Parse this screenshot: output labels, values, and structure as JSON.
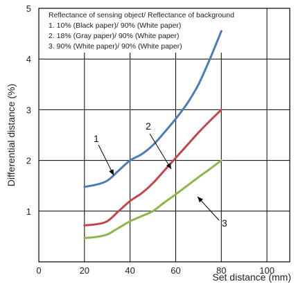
{
  "chart_data": {
    "type": "line",
    "xlabel": "Set distance (mm)",
    "ylabel": "Differential distance (%)",
    "xlim": [
      0,
      110
    ],
    "ylim": [
      0,
      5
    ],
    "x_ticks": [
      "0",
      "20",
      "40",
      "60",
      "80",
      "100"
    ],
    "y_ticks": [
      "1",
      "2",
      "3",
      "4",
      "5"
    ],
    "grid": true,
    "legend_placement": "top-left",
    "legend": {
      "heading": "Reflectance of sensing object/ Reflectance of background",
      "entries": [
        "1. 10% (Black paper)/ 90% (White paper)",
        "2. 18% (Gray paper)/ 90% (White paper)",
        "3. 90% (White paper)/ 90% (White paper)"
      ]
    },
    "series": [
      {
        "label": "1",
        "color": "#4a7db8",
        "points": [
          [
            20,
            1.48
          ],
          [
            25,
            1.52
          ],
          [
            30,
            1.6
          ],
          [
            35,
            1.8
          ],
          [
            40,
            2.0
          ],
          [
            45,
            2.12
          ],
          [
            50,
            2.3
          ],
          [
            55,
            2.55
          ],
          [
            60,
            2.82
          ],
          [
            65,
            3.12
          ],
          [
            70,
            3.5
          ],
          [
            75,
            4.0
          ],
          [
            80,
            4.55
          ]
        ]
      },
      {
        "label": "2",
        "color": "#c0464a",
        "points": [
          [
            20,
            0.72
          ],
          [
            25,
            0.74
          ],
          [
            30,
            0.8
          ],
          [
            35,
            1.0
          ],
          [
            40,
            1.2
          ],
          [
            45,
            1.35
          ],
          [
            50,
            1.55
          ],
          [
            55,
            1.8
          ],
          [
            60,
            2.05
          ],
          [
            65,
            2.3
          ],
          [
            70,
            2.55
          ],
          [
            75,
            2.78
          ],
          [
            80,
            3.0
          ]
        ]
      },
      {
        "label": "3",
        "color": "#8cb84a",
        "points": [
          [
            20,
            0.47
          ],
          [
            25,
            0.49
          ],
          [
            30,
            0.54
          ],
          [
            35,
            0.67
          ],
          [
            40,
            0.8
          ],
          [
            45,
            0.9
          ],
          [
            50,
            1.0
          ],
          [
            55,
            1.17
          ],
          [
            60,
            1.33
          ],
          [
            65,
            1.5
          ],
          [
            70,
            1.67
          ],
          [
            75,
            1.83
          ],
          [
            80,
            2.0
          ]
        ]
      }
    ]
  }
}
